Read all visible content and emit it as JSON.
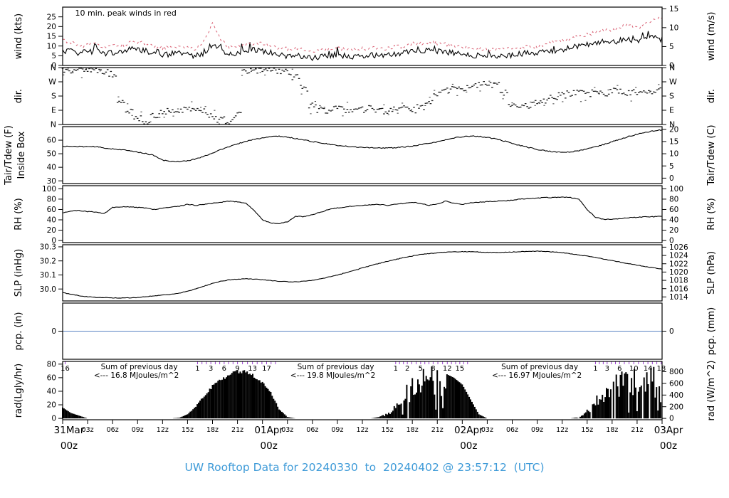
{
  "figure": {
    "caption": "UW Rooftop Data for 20240330  to  20240402 @ 23:57:12  (UTC)",
    "caption_color": "#3f9bd8",
    "background": "#ffffff"
  },
  "colors": {
    "trace_black": "#000000",
    "peak_red": "#d95f72",
    "annotation_red": "#d94f63",
    "day_label_red": "#ee5d6f",
    "purple": "#9d3fd4",
    "pcp_blue": "#5b84c4",
    "caption_blue": "#3f9bd8"
  },
  "x_axis": {
    "span_hours": 72,
    "tick_interval_hours": 3,
    "hour_labels": [
      {
        "label": "03z",
        "offset": 3
      },
      {
        "label": "06z",
        "offset": 6
      },
      {
        "label": "09z",
        "offset": 9
      },
      {
        "label": "12z",
        "offset": 12
      },
      {
        "label": "15z",
        "offset": 15
      },
      {
        "label": "18z",
        "offset": 18
      },
      {
        "label": "21z",
        "offset": 21
      }
    ],
    "day_labels": [
      {
        "label": "31Mar",
        "sub": "00z",
        "hour": 0
      },
      {
        "label": "01Apr",
        "sub": "00z",
        "hour": 24
      },
      {
        "label": "02Apr",
        "sub": "00z",
        "hour": 48
      },
      {
        "label": "03Apr",
        "sub": "00z",
        "hour": 72
      }
    ]
  },
  "chart_data": [
    {
      "id": "wind",
      "type": "line",
      "ylabel_left": "wind (kts)",
      "ylabel_right": "wind (m/s)",
      "ylim": [
        0,
        30
      ],
      "yticks_left": {
        "values": [
          0,
          5,
          10,
          15,
          20,
          25
        ]
      },
      "yticks_right": {
        "values": [
          0,
          5,
          10,
          15
        ],
        "unit": "m/s"
      },
      "annotation": {
        "text": "10 min. peak winds in red",
        "x_hour": 1.5
      },
      "series": [
        {
          "name": "wind mean (kts)",
          "style": "solid-black",
          "jitter": 1.5,
          "values": [
            7,
            7.5,
            6.5,
            7,
            7.5,
            6,
            6.5,
            7,
            8,
            8.5,
            7.5,
            6,
            5.5,
            6,
            6.5,
            5.5,
            5,
            6.5,
            11,
            7.5,
            6,
            6.5,
            7.5,
            8,
            7.5,
            6.5,
            5.5,
            5,
            5.5,
            4.5,
            4,
            4.5,
            5,
            5.5,
            5,
            4.5,
            5,
            5.5,
            5,
            5.5,
            6,
            6.5,
            7.5,
            7,
            8,
            7.5,
            7,
            6.5,
            6,
            5.5,
            5,
            4.5,
            5,
            5.5,
            5,
            6,
            6.5,
            6,
            7,
            7.5,
            8,
            9,
            10,
            10.5,
            11.5,
            12.5,
            12,
            13,
            13.5,
            12.5,
            13.5,
            14.5,
            13.5
          ]
        },
        {
          "name": "10 min. peak wind (kts)",
          "style": "dashed-red",
          "jitter": 1.0,
          "values": [
            13,
            12,
            10,
            10.5,
            11,
            9.5,
            10,
            10.5,
            11.5,
            12,
            11,
            9.5,
            9,
            9.5,
            10,
            9,
            8.5,
            13,
            22,
            13,
            9.5,
            10,
            11,
            11.5,
            11,
            10,
            9,
            8.5,
            9,
            8,
            7.5,
            8,
            8.5,
            9,
            8.5,
            8,
            8.5,
            9,
            8.5,
            9,
            9.5,
            10,
            11.5,
            11,
            12,
            11.5,
            11,
            10,
            9.5,
            9,
            8.5,
            8,
            8.5,
            9,
            8.5,
            9.5,
            10,
            9.5,
            11,
            12,
            13,
            14,
            15,
            16,
            17,
            18.5,
            18,
            19.5,
            21,
            19,
            21.5,
            24,
            25
          ]
        }
      ]
    },
    {
      "id": "dir",
      "type": "scatter",
      "ylabel_left": "dir.",
      "ylabel_right": "dir.",
      "ylim": [
        0,
        360
      ],
      "yticks_left": {
        "values": [
          0,
          90,
          180,
          270,
          360
        ],
        "labels": [
          "N",
          "E",
          "S",
          "W",
          "N"
        ]
      },
      "yticks_right": {
        "values": [
          0,
          90,
          180,
          270,
          360
        ],
        "labels": [
          "N",
          "E",
          "S",
          "W",
          "N"
        ]
      },
      "series": [
        {
          "name": "wind direction (deg)",
          "style": "scatter-black",
          "values": [
            345,
            340,
            350,
            335,
            345,
            340,
            320,
            150,
            80,
            40,
            15,
            55,
            80,
            90,
            85,
            95,
            90,
            80,
            55,
            30,
            15,
            60,
            330,
            340,
            345,
            350,
            340,
            335,
            300,
            230,
            120,
            95,
            90,
            100,
            95,
            90,
            95,
            100,
            90,
            85,
            95,
            100,
            90,
            110,
            150,
            195,
            215,
            225,
            230,
            240,
            255,
            265,
            250,
            200,
            130,
            110,
            120,
            135,
            150,
            165,
            185,
            195,
            200,
            195,
            205,
            200,
            210,
            205,
            200,
            210,
            205,
            210,
            215
          ]
        }
      ]
    },
    {
      "id": "temp",
      "type": "line",
      "ylabel_left": "Tair/Tdew (F)",
      "ylabel_left2": "Inside Box",
      "ylabel_right": "Tair/Tdew (C)",
      "ylim": [
        28,
        70
      ],
      "yticks_left": {
        "values": [
          30,
          40,
          50,
          60
        ]
      },
      "yticks_right": {
        "values": [
          0,
          5,
          10,
          15,
          20
        ],
        "unit": "C"
      },
      "series": [
        {
          "name": "Tair (F)",
          "style": "solid-black",
          "jitter": 0.35,
          "values": [
            55.5,
            55.4,
            55.3,
            55.3,
            55.2,
            54.2,
            53.6,
            53,
            52.2,
            51.2,
            50.2,
            48.6,
            45.2,
            44.4,
            44.2,
            44.8,
            46.2,
            48.2,
            50.6,
            53,
            55.2,
            57.2,
            59.2,
            60.6,
            61.6,
            62.6,
            63,
            62.2,
            61.2,
            60.2,
            59,
            58,
            57,
            56,
            55.5,
            55,
            54.8,
            54.5,
            54.3,
            54.2,
            54.5,
            55,
            55.6,
            56.6,
            57.6,
            58.8,
            60.2,
            61.6,
            62.6,
            63,
            62.8,
            62,
            61,
            59.4,
            57.6,
            56,
            54.6,
            53.2,
            52.2,
            51.4,
            51,
            51.3,
            52.2,
            53.6,
            55.2,
            56.8,
            58.8,
            60.8,
            62.8,
            64.4,
            65.8,
            66.8,
            67.6
          ]
        }
      ]
    },
    {
      "id": "rh",
      "type": "line",
      "ylabel_left": "RH (%)",
      "ylabel_right": "RH (%)",
      "ylim": [
        -4,
        106
      ],
      "yticks_left": {
        "values": [
          0,
          20,
          40,
          60,
          80,
          100
        ]
      },
      "yticks_right": {
        "values": [
          0,
          20,
          40,
          60,
          80,
          100
        ]
      },
      "series": [
        {
          "name": "RH (%)",
          "style": "solid-black",
          "jitter": 0.7,
          "values": [
            54,
            57,
            58,
            56,
            55,
            52,
            64,
            65,
            65,
            64,
            63,
            60,
            63,
            65,
            66,
            70,
            68,
            70,
            72,
            74,
            76,
            75,
            72,
            58,
            40,
            34,
            33,
            36,
            47,
            46,
            50,
            55,
            60,
            63,
            65,
            67,
            68,
            69,
            70,
            68,
            70,
            72,
            74,
            72,
            68,
            71,
            76,
            72,
            70,
            73,
            74,
            75,
            76,
            77,
            78,
            80,
            81,
            82,
            83,
            83,
            84,
            83,
            80,
            60,
            45,
            41,
            41,
            42,
            44,
            45,
            46,
            46,
            47
          ]
        }
      ]
    },
    {
      "id": "slp",
      "type": "line",
      "ylabel_left": "SLP (inHg)",
      "ylabel_right": "SLP (hPa)",
      "ylim": [
        29.915,
        30.315
      ],
      "yticks_left": {
        "values": [
          30.0,
          30.1,
          30.2,
          30.3
        ],
        "labels": [
          "30.0",
          "30.1",
          "30.2",
          "30.3"
        ]
      },
      "yticks_right": {
        "values": [
          1014,
          1016,
          1018,
          1020,
          1022,
          1024,
          1026
        ],
        "unit": "hPa"
      },
      "series": [
        {
          "name": "SLP (inHg)",
          "style": "solid-black",
          "jitter": 0.002,
          "values": [
            29.975,
            29.962,
            29.952,
            29.945,
            29.94,
            29.938,
            29.937,
            29.936,
            29.937,
            29.94,
            29.945,
            29.951,
            29.956,
            29.962,
            29.97,
            29.985,
            30,
            30.02,
            30.04,
            30.055,
            30.065,
            30.07,
            30.072,
            30.07,
            30.066,
            30.06,
            30.055,
            30.052,
            30.051,
            30.055,
            30.062,
            30.072,
            30.086,
            30.1,
            30.115,
            30.132,
            30.15,
            30.166,
            30.182,
            30.197,
            30.21,
            30.224,
            30.235,
            30.246,
            30.252,
            30.257,
            30.262,
            30.265,
            30.266,
            30.265,
            30.263,
            30.261,
            30.26,
            30.261,
            30.263,
            30.266,
            30.268,
            30.269,
            30.267,
            30.263,
            30.258,
            30.251,
            30.243,
            30.234,
            30.224,
            30.213,
            30.202,
            30.191,
            30.18,
            30.17,
            30.16,
            30.15,
            30.141
          ]
        }
      ]
    },
    {
      "id": "pcp",
      "type": "line",
      "ylabel_left": "pcp. (in)",
      "ylabel_right": "pcp. (mm)",
      "ylim": [
        -1,
        1
      ],
      "yticks_left": {
        "values": [
          0
        ]
      },
      "yticks_right": {
        "values": [
          0
        ]
      },
      "series": [
        {
          "name": "precipitation (in)",
          "style": "solid-blue",
          "values_constant": 0
        }
      ]
    },
    {
      "id": "rad",
      "type": "bar",
      "ylabel_left": "rad(Lgly/hr)",
      "ylabel_right": "rad (W/m^2)",
      "ylim": [
        -2,
        84
      ],
      "yticks_left": {
        "values": [
          0,
          20,
          40,
          60,
          80
        ]
      },
      "yticks_right": {
        "values": [
          0,
          200,
          400,
          600,
          800
        ],
        "unit": "W/m2"
      },
      "series": [
        {
          "name": "solar radiation (Lgly/hr)",
          "style": "bars-black",
          "values": [
            16,
            8,
            4,
            0,
            0,
            0,
            0,
            0,
            0,
            0,
            0,
            0,
            0,
            0,
            1,
            6,
            18,
            34,
            48,
            58,
            66,
            71,
            70,
            64,
            54,
            38,
            14,
            2,
            0,
            0,
            0,
            0,
            0,
            0,
            0,
            0,
            0,
            0,
            2,
            8,
            22,
            42,
            55,
            64,
            72,
            71,
            66,
            60,
            50,
            28,
            6,
            0,
            0,
            0,
            0,
            0,
            0,
            0,
            0,
            0,
            0,
            0,
            2,
            12,
            30,
            48,
            58,
            66,
            74,
            72,
            76,
            70,
            48
          ]
        }
      ],
      "cloudy_hour_ranges": [
        [
          38.5,
          46
        ],
        [
          61.5,
          72
        ]
      ],
      "mild_noise_hour_ranges": [
        [
          14,
          26.5
        ]
      ],
      "cumsum_groups": [
        {
          "labels": [
            "16"
          ],
          "hours": [
            0.3
          ]
        },
        {
          "labels": [
            "1",
            "3",
            "6",
            "9",
            "13",
            "17"
          ],
          "hours": [
            16.2,
            17.8,
            19.4,
            21.0,
            22.8,
            24.5
          ]
        },
        {
          "labels": [
            "1",
            "2",
            "5",
            "8",
            "12",
            "15"
          ],
          "hours": [
            40.0,
            41.4,
            43.0,
            44.5,
            46.2,
            47.7
          ]
        },
        {
          "labels": [
            "1",
            "3",
            "6",
            "10",
            "14",
            "18"
          ],
          "hours": [
            64.0,
            65.4,
            66.9,
            68.6,
            70.3,
            71.9
          ]
        }
      ],
      "annotations": [
        {
          "lines": [
            "Sum of previous day",
            "<--- 16.8 MJoules/m^2"
          ],
          "x_hour": 9.2
        },
        {
          "lines": [
            "Sum of previous day",
            "<--- 19.8 MJoules/m^2"
          ],
          "x_hour": 32.8
        },
        {
          "lines": [
            "Sum of previous day",
            "<--- 16.97 MJoules/m^2"
          ],
          "x_hour": 57.3
        }
      ]
    }
  ]
}
